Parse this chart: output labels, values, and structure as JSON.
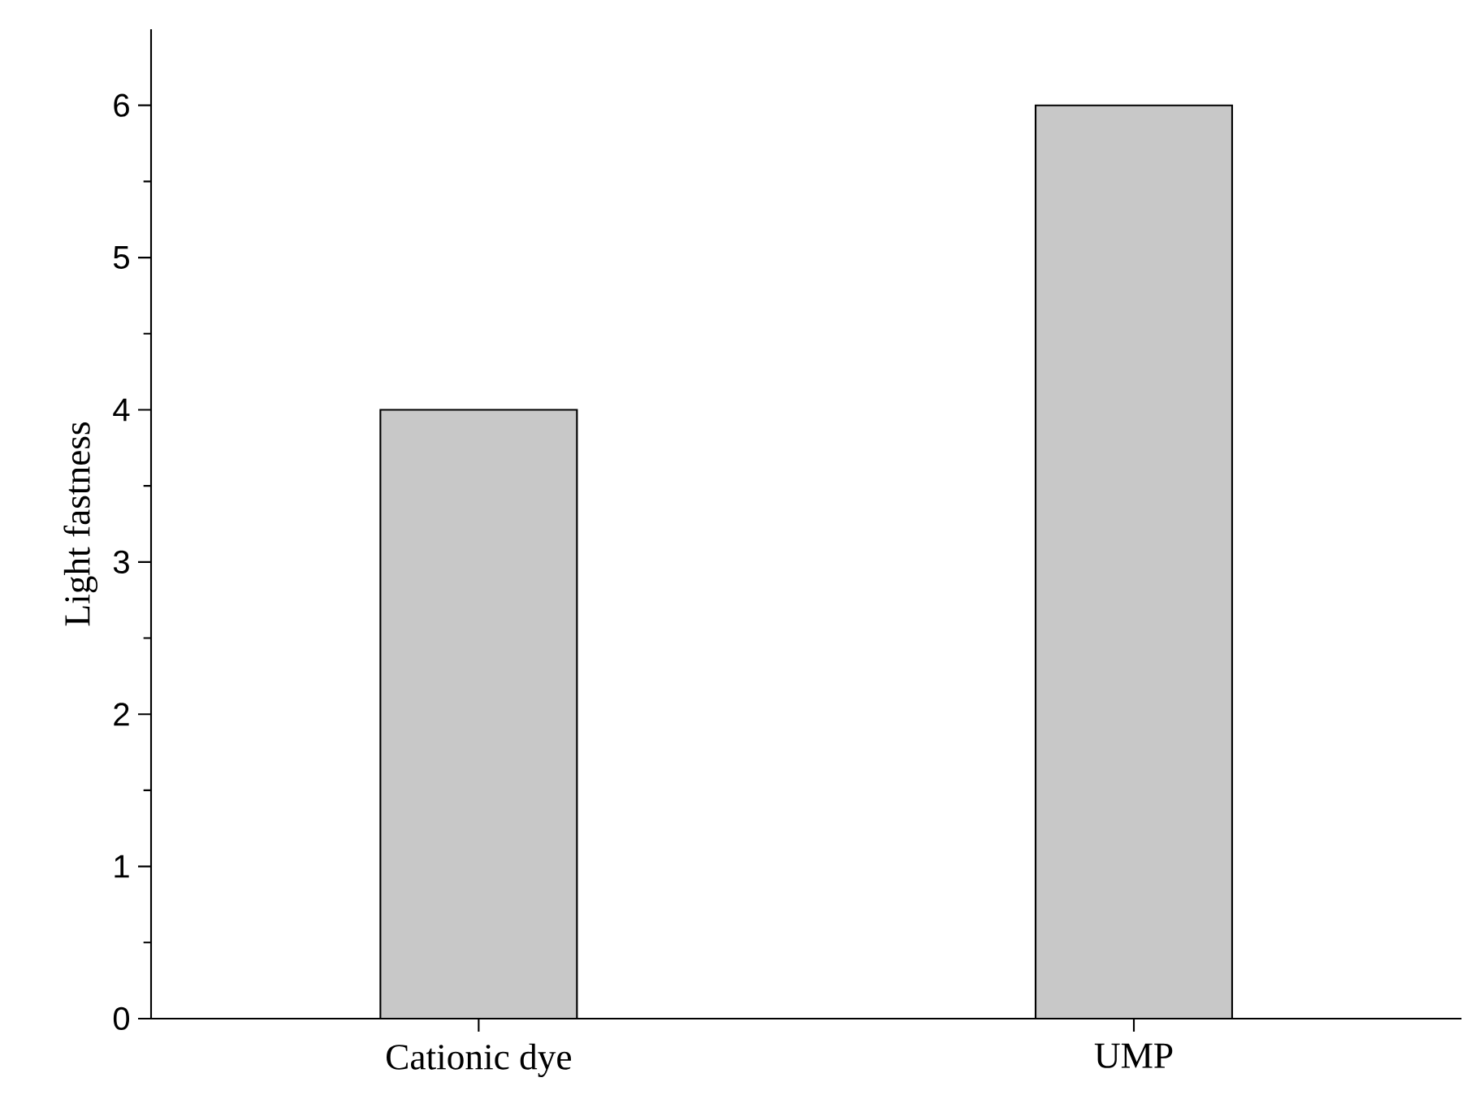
{
  "chart_data": {
    "type": "bar",
    "ylabel": "Light fastness",
    "categories": [
      "Cationic dye",
      "UMP"
    ],
    "values": [
      4,
      6
    ],
    "color": "#c8c8c8",
    "ylim": [
      0,
      6.5
    ],
    "yticks": [
      0,
      1,
      2,
      3,
      4,
      5,
      6
    ],
    "grid": false
  }
}
